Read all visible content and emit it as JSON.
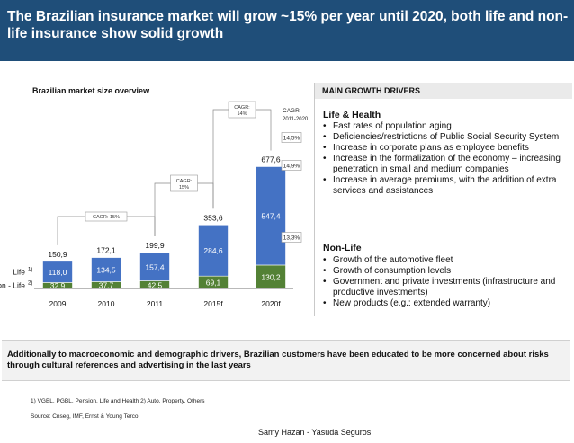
{
  "header": {
    "title": "The Brazilian insurance market will grow ~15% per year until 2020, both   life and non-life insurance show solid growth"
  },
  "chart_data": {
    "type": "bar",
    "title": "Brazilian market size overview",
    "categories": [
      "2009",
      "2010",
      "2011",
      "2015f",
      "2020f"
    ],
    "series": [
      {
        "name": "Non - Life",
        "footnote": "2)",
        "values": [
          32.9,
          37.7,
          42.5,
          69.1,
          130.2
        ],
        "labels": [
          "32,9",
          "37,7",
          "42,5",
          "69,1",
          "130,2"
        ],
        "color": "#538135"
      },
      {
        "name": "Life",
        "footnote": "1)",
        "values": [
          118.0,
          134.5,
          157.4,
          284.6,
          547.4
        ],
        "labels": [
          "118,0",
          "134,5",
          "157,4",
          "284,6",
          "547,4"
        ],
        "color": "#4472c4"
      }
    ],
    "totals": [
      150.9,
      172.1,
      199.9,
      353.6,
      677.6
    ],
    "total_labels": [
      "150,9",
      "172,1",
      "199,9",
      "353,6",
      "677,6"
    ],
    "cagr_brackets": [
      {
        "text": "CAGR: 15%"
      },
      {
        "text": "CAGR : 15%"
      },
      {
        "text": "CAGR: 14%"
      }
    ],
    "cagr_side": {
      "title": "CAGR",
      "subtitle": "2011-2020",
      "total": "14,5%",
      "life": "14,9%",
      "non_life": "13,3%"
    },
    "legend": "left-inline",
    "grid": false
  },
  "drivers": {
    "heading": "MAIN GROWTH DRIVERS",
    "life_title": "Life & Health",
    "life_items": [
      "Fast rates of population aging",
      "Deficiencies/restrictions of Public Social Security System",
      "Increase in corporate plans as employee benefits",
      "Increase in the formalization of the economy – increasing penetration in small and medium companies",
      "Increase in average premiums, with the addition of extra services and assistances"
    ],
    "nonlife_title": "Non-Life",
    "nonlife_items": [
      "Growth of the automotive fleet",
      "Growth of consumption levels",
      "Government and private investments (infrastructure and productive investments)",
      "New products (e.g.: extended warranty)"
    ]
  },
  "note": "Additionally to macroeconomic and demographic drivers, Brazilian customers have been educated to be more concerned about risks through cultural references and advertising in the last years",
  "footnotes": {
    "definitions": "1) VGBL, PGBL, Pension, Life and Health   2) Auto, Property, Others",
    "source": "Source: Cnseg, IMF, Ernst & Young Terco"
  },
  "author": "Samy Hazan - Yasuda Seguros"
}
